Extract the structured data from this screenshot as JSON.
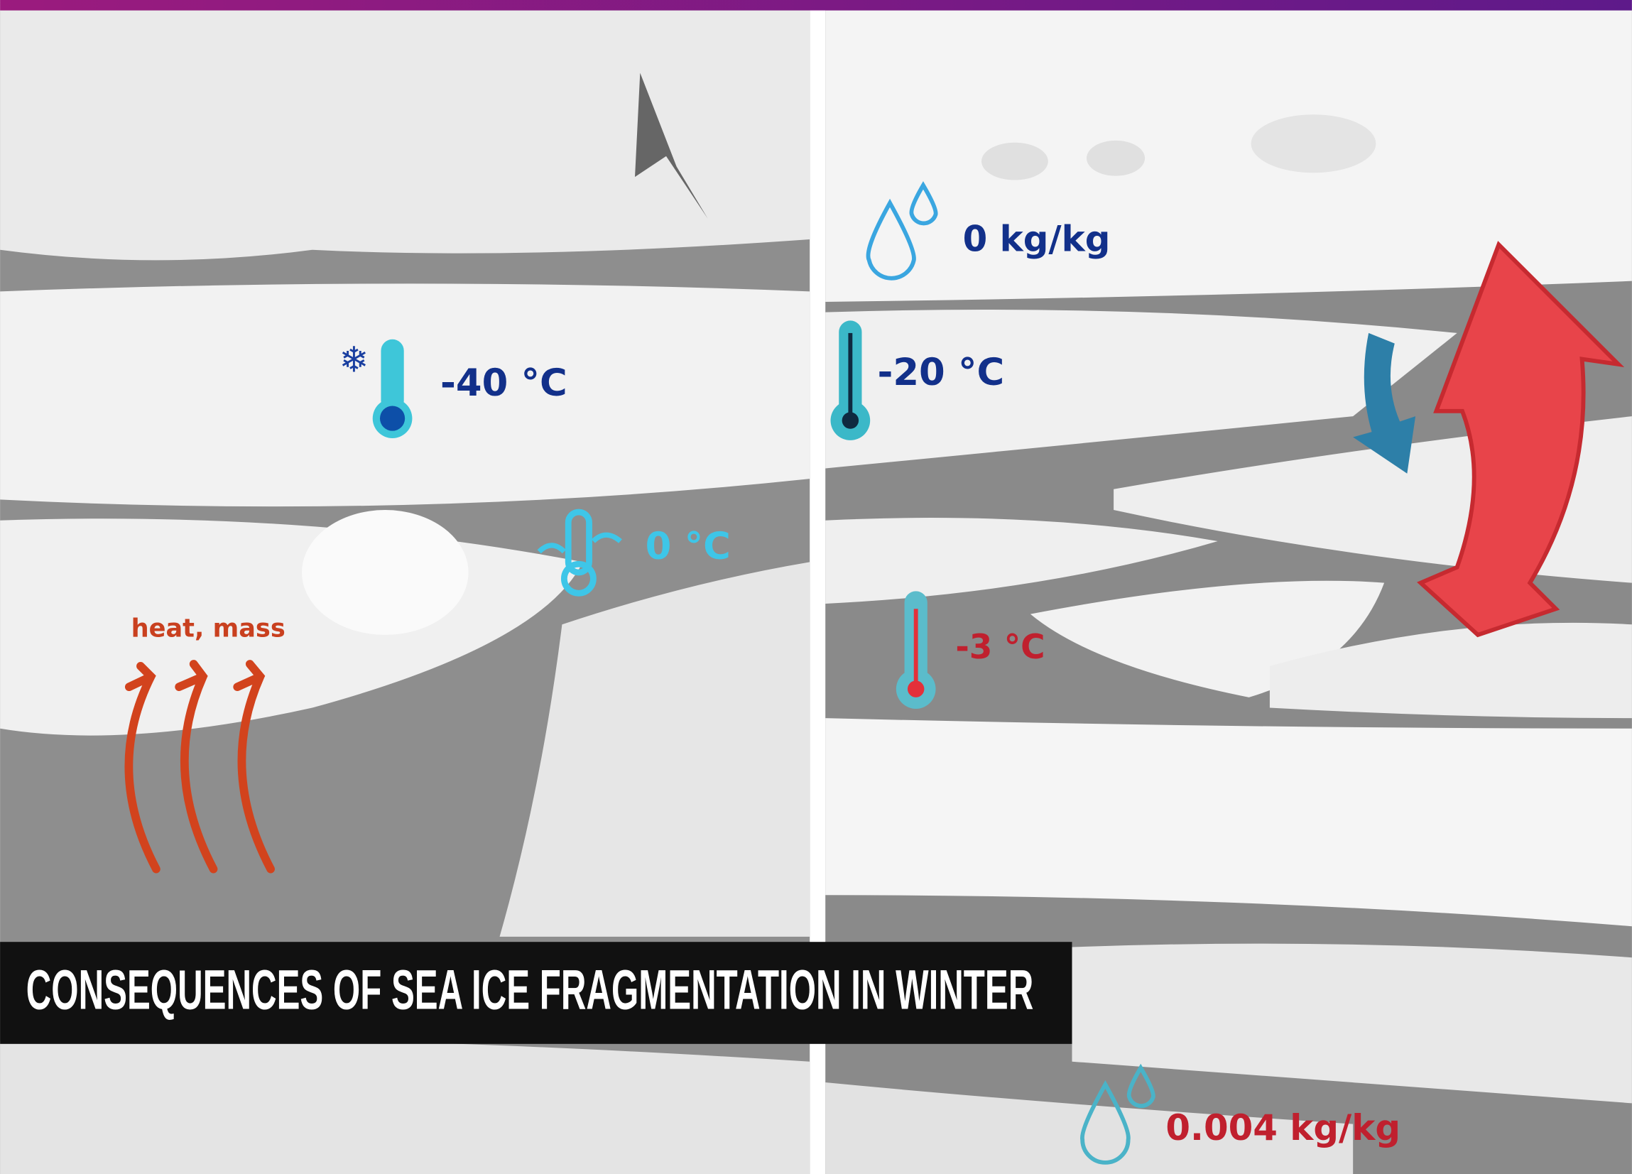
{
  "title": "CONSEQUENCES OF SEA ICE FRAGMENTATION IN WINTER",
  "left_panel": {
    "air_temperature": "-40 °C",
    "water_temperature": "0 °C",
    "flux_label": "heat, mass"
  },
  "right_panel": {
    "humidity_top": "0 kg/kg",
    "air_temperature": "-20 °C",
    "surface_temperature": "-3 °C",
    "humidity_bottom": "0.004 kg/kg"
  }
}
